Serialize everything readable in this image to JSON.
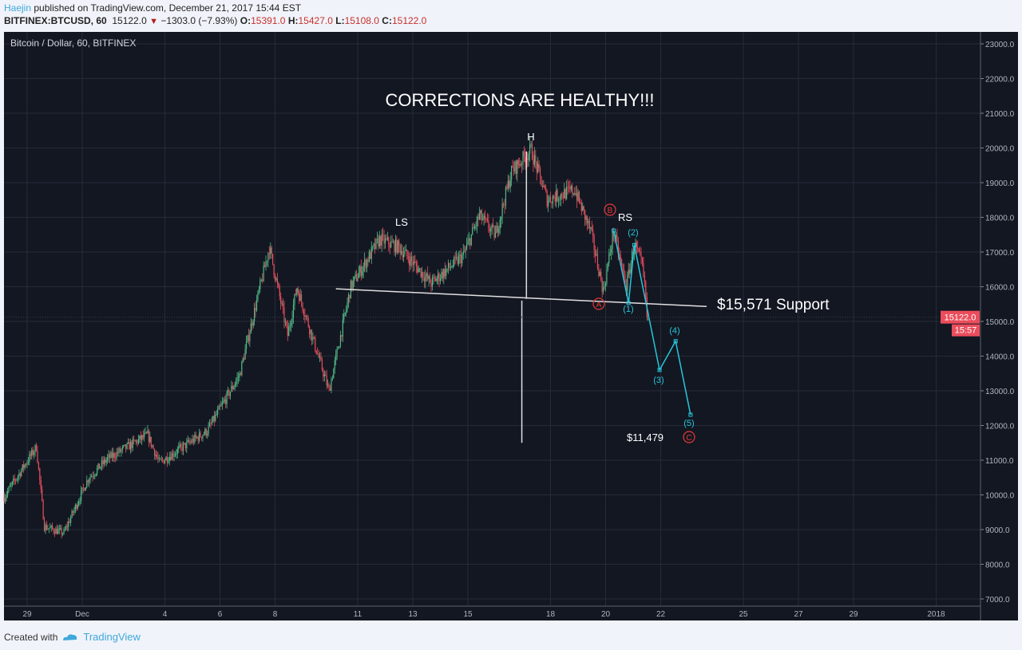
{
  "header": {
    "author": "Haejin",
    "published_text": "published on TradingView.com, December 21, 2017 15:44 EST",
    "symbol": "BITFINEX:BTCUSD, 60",
    "last": "15122.0",
    "change": "−1303.0 (−7.93%)",
    "change_direction": "down",
    "o_label": "O:",
    "o": "15391.0",
    "h_label": "H:",
    "h": "15427.0",
    "l_label": "L:",
    "l": "15108.0",
    "c_label": "C:",
    "c": "15122.0"
  },
  "footer": {
    "created_with": "Created with",
    "brand": "TradingView",
    "brand_icon": "tradingview-cloud-logo"
  },
  "colors": {
    "background": "#131722",
    "grid": "#262b38",
    "up": "#53b987",
    "down": "#eb4d5c",
    "wave": "#26c6da",
    "annotation": "#ffffff",
    "circle_label": "#e53935",
    "price_label_bg": "#eb4d5c"
  },
  "chart_data": {
    "type": "candlestick",
    "title": "Bitcoin / Dollar, 60, BITFINEX",
    "interval": "60",
    "ylim": [
      6600,
      23300
    ],
    "yticks": [
      "23000.0",
      "22000.0",
      "21000.0",
      "20000.0",
      "19000.0",
      "18000.0",
      "17000.0",
      "16000.0",
      "15000.0",
      "14000.0",
      "13000.0",
      "12000.0",
      "11000.0",
      "10000.0",
      "9000.0",
      "8000.0",
      "7000.0"
    ],
    "xticks": [
      {
        "date": "2017-11-29",
        "label": "29"
      },
      {
        "date": "2017-12-01",
        "label": "Dec"
      },
      {
        "date": "2017-12-04",
        "label": "4"
      },
      {
        "date": "2017-12-06",
        "label": "6"
      },
      {
        "date": "2017-12-08",
        "label": "8"
      },
      {
        "date": "2017-12-11",
        "label": "11"
      },
      {
        "date": "2017-12-13",
        "label": "13"
      },
      {
        "date": "2017-12-15",
        "label": "15"
      },
      {
        "date": "2017-12-18",
        "label": "18"
      },
      {
        "date": "2017-12-20",
        "label": "20"
      },
      {
        "date": "2017-12-22",
        "label": "22"
      },
      {
        "date": "2017-12-25",
        "label": "25"
      },
      {
        "date": "2017-12-27",
        "label": "27"
      },
      {
        "date": "2017-12-29",
        "label": "29"
      },
      {
        "date": "2018-01-01",
        "label": "2018"
      }
    ],
    "grid": true,
    "price_path": [
      [
        "2017-11-28T04:00",
        9940
      ],
      [
        "2017-11-29T08:00",
        11385
      ],
      [
        "2017-11-29T15:00",
        9085
      ],
      [
        "2017-11-30T08:00",
        8900
      ],
      [
        "2017-12-01T05:00",
        10465
      ],
      [
        "2017-12-01T22:00",
        11040
      ],
      [
        "2017-12-03T09:00",
        11730
      ],
      [
        "2017-12-03T19:00",
        10925
      ],
      [
        "2017-12-05T13:00",
        11845
      ],
      [
        "2017-12-06T17:00",
        13455
      ],
      [
        "2017-12-07T19:00",
        17135
      ],
      [
        "2017-12-08T11:00",
        14600
      ],
      [
        "2017-12-08T19:00",
        15985
      ],
      [
        "2017-12-09T23:00",
        12995
      ],
      [
        "2017-12-10T18:00",
        16000
      ],
      [
        "2017-12-11T19:00",
        17365
      ],
      [
        "2017-12-12T12:00",
        17135
      ],
      [
        "2017-12-13T16:00",
        16100
      ],
      [
        "2017-12-14T20:00",
        16900
      ],
      [
        "2017-12-15T10:00",
        18050
      ],
      [
        "2017-12-16T00:00",
        17480
      ],
      [
        "2017-12-16T14:00",
        19320
      ],
      [
        "2017-12-17T07:00",
        19940
      ],
      [
        "2017-12-17T21:00",
        18515
      ],
      [
        "2017-12-18T21:00",
        18790
      ],
      [
        "2017-12-19T11:00",
        17600
      ],
      [
        "2017-12-19T22:00",
        15870
      ],
      [
        "2017-12-20T07:00",
        17600
      ],
      [
        "2017-12-20T18:00",
        16000
      ],
      [
        "2017-12-21T01:00",
        17250
      ],
      [
        "2017-12-21T08:00",
        16560
      ],
      [
        "2017-12-21T13:00",
        15122
      ]
    ],
    "last_price": "15122.0",
    "countdown": "15:57",
    "annotations": {
      "headline": "CORRECTIONS ARE HEALTHY!!!",
      "head": "H",
      "left_shoulder": "LS",
      "right_shoulder": "RS",
      "support_label": "$15,571 Support",
      "target_label": "$11,479",
      "neckline": [
        [
          "2017-12-10T05:00",
          15940
        ],
        [
          "2017-12-23T16:00",
          15430
        ]
      ],
      "head_measure": [
        [
          "2017-12-17T03:00",
          19900
        ],
        [
          "2017-12-17T03:00",
          15650
        ]
      ],
      "projection_measure": [
        [
          "2017-12-16T23:00",
          15600
        ],
        [
          "2017-12-16T23:00",
          11500
        ]
      ],
      "abc_labels": [
        "A",
        "B",
        "C"
      ],
      "wave_labels": [
        "(1)",
        "(2)",
        "(3)",
        "(4)",
        "(5)"
      ],
      "wave_points": [
        [
          "2017-12-20T07:00",
          17620
        ],
        [
          "2017-12-20T20:00",
          15530
        ],
        [
          "2017-12-21T01:00",
          17200
        ],
        [
          "2017-12-21T23:00",
          13600
        ],
        [
          "2017-12-22T13:00",
          14430
        ],
        [
          "2017-12-23T02:00",
          12310
        ]
      ]
    }
  }
}
